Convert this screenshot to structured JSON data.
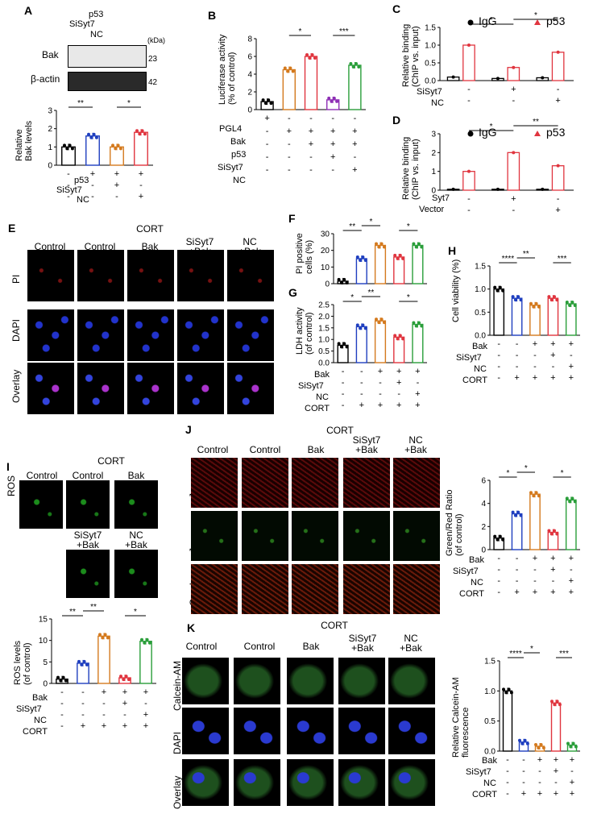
{
  "panels": {
    "A": "A",
    "B": "B",
    "C": "C",
    "D": "D",
    "E": "E",
    "F": "F",
    "G": "G",
    "H": "H",
    "I": "I",
    "J": "J",
    "K": "K"
  },
  "common": {
    "control": "Control",
    "cort": "CORT",
    "bak": "Bak",
    "sisyt7": "SiSyt7",
    "nc": "NC",
    "p53": "p53",
    "plus": "+",
    "minus": "-",
    "sisyt7_bak": [
      "SiSyt7",
      "+Bak"
    ],
    "nc_bak": [
      "NC",
      "+Bak"
    ]
  },
  "A": {
    "blot_labels": [
      "Bak",
      "β-actin"
    ],
    "kda": "(kDa)",
    "markers": [
      "23",
      "42"
    ],
    "ylabel": [
      "Relative",
      "Bak levels"
    ],
    "sig": [
      "**",
      "*"
    ]
  },
  "B": {
    "ylabel": [
      "Luciferase activity",
      "(% of control)"
    ],
    "rows": [
      "PGL4",
      "Bak",
      "p53",
      "SiSyt7",
      "NC"
    ],
    "sig": [
      "*",
      "***"
    ]
  },
  "C": {
    "legend": [
      "IgG",
      "p53"
    ],
    "ylabel": [
      "Relative binding",
      "(ChIP vs. input)"
    ],
    "rows": [
      "SiSyt7",
      "NC"
    ],
    "sig": [
      "*",
      "*"
    ]
  },
  "D": {
    "legend": [
      "IgG",
      "p53"
    ],
    "ylabel": [
      "Relative binding",
      "(ChIP vs. input)"
    ],
    "rows": [
      "Syt7",
      "Vector"
    ],
    "sig": [
      "*",
      "**"
    ]
  },
  "E": {
    "rows": [
      "PI",
      "DAPI",
      "Overlay"
    ]
  },
  "F": {
    "ylabel": [
      "PI positive",
      "cells (%)"
    ],
    "sig": [
      "**",
      "*",
      "*"
    ]
  },
  "G": {
    "ylabel": [
      "LDH activity",
      "(of control)"
    ],
    "sig": [
      "*",
      "**",
      "*"
    ]
  },
  "H": {
    "ylabel": "Cell viability (%)",
    "sig": [
      "****",
      "**",
      "***"
    ]
  },
  "I": {
    "row": "ROS",
    "ylabel": [
      "ROS levels",
      "(of control)"
    ],
    "sig": [
      "**",
      "**",
      "*"
    ]
  },
  "J": {
    "rows": [
      "J-agg",
      "J-mono",
      "Overlay"
    ],
    "ylabel": [
      "Green/Red Ratio",
      "(of control)"
    ],
    "sig": [
      "*",
      "*",
      "*"
    ]
  },
  "K": {
    "rows": [
      "Calcein-AM",
      "DAPI",
      "Overlay"
    ],
    "ylabel": [
      "Relative Calcein-AM",
      "fluorescence"
    ],
    "sig": [
      "****",
      "*",
      "***"
    ]
  },
  "chart_data": [
    {
      "id": "A",
      "type": "bar",
      "categories": [
        "1",
        "2",
        "3",
        "4"
      ],
      "values": [
        1.0,
        1.6,
        1.0,
        1.8
      ],
      "ylim": [
        0,
        3
      ],
      "colors": [
        "#000000",
        "#1f3fbf",
        "#d47a1e",
        "#e0353f"
      ]
    },
    {
      "id": "B",
      "type": "bar",
      "categories": [
        "1",
        "2",
        "3",
        "4",
        "5"
      ],
      "values": [
        0.9,
        4.5,
        6.0,
        1.1,
        5.0
      ],
      "ylim": [
        0,
        8
      ],
      "colors": [
        "#000000",
        "#d47a1e",
        "#e0353f",
        "#8e2fb5",
        "#2a9e3a"
      ]
    },
    {
      "id": "C",
      "type": "bar",
      "series": [
        {
          "name": "IgG",
          "values": [
            0.1,
            0.06,
            0.08
          ]
        },
        {
          "name": "p53",
          "values": [
            1.0,
            0.37,
            0.8
          ]
        }
      ],
      "ylim": [
        0,
        1.5
      ],
      "colors": [
        "#000000",
        "#e0353f"
      ]
    },
    {
      "id": "D",
      "type": "bar",
      "series": [
        {
          "name": "IgG",
          "values": [
            0.05,
            0.05,
            0.05
          ]
        },
        {
          "name": "p53",
          "values": [
            1.0,
            2.0,
            1.3
          ]
        }
      ],
      "ylim": [
        0,
        3
      ],
      "colors": [
        "#000000",
        "#e0353f"
      ]
    },
    {
      "id": "F",
      "type": "bar",
      "categories": [
        "1",
        "2",
        "3",
        "4",
        "5"
      ],
      "values": [
        1.5,
        15,
        23,
        16,
        23
      ],
      "ylim": [
        0,
        30
      ],
      "colors": [
        "#000000",
        "#1f3fbf",
        "#d47a1e",
        "#e0353f",
        "#2a9e3a"
      ]
    },
    {
      "id": "G",
      "type": "bar",
      "categories": [
        "1",
        "2",
        "3",
        "4",
        "5"
      ],
      "values": [
        0.75,
        1.55,
        1.8,
        1.1,
        1.65
      ],
      "ylim": [
        0,
        2.5
      ],
      "colors": [
        "#000000",
        "#1f3fbf",
        "#d47a1e",
        "#e0353f",
        "#2a9e3a"
      ]
    },
    {
      "id": "H",
      "type": "bar",
      "categories": [
        "1",
        "2",
        "3",
        "4",
        "5"
      ],
      "values": [
        1.0,
        0.8,
        0.65,
        0.8,
        0.68
      ],
      "ylim": [
        0,
        1.5
      ],
      "colors": [
        "#000000",
        "#1f3fbf",
        "#d47a1e",
        "#e0353f",
        "#2a9e3a"
      ]
    },
    {
      "id": "I",
      "type": "bar",
      "categories": [
        "1",
        "2",
        "3",
        "4",
        "5"
      ],
      "values": [
        1.0,
        4.7,
        11,
        1.3,
        9.8
      ],
      "ylim": [
        0,
        15
      ],
      "colors": [
        "#000000",
        "#1f3fbf",
        "#d47a1e",
        "#e0353f",
        "#2a9e3a"
      ]
    },
    {
      "id": "J",
      "type": "bar",
      "categories": [
        "1",
        "2",
        "3",
        "4",
        "5"
      ],
      "values": [
        1.0,
        3.1,
        4.8,
        1.5,
        4.3
      ],
      "ylim": [
        0,
        6
      ],
      "colors": [
        "#000000",
        "#1f3fbf",
        "#d47a1e",
        "#e0353f",
        "#2a9e3a"
      ]
    },
    {
      "id": "K",
      "type": "bar",
      "categories": [
        "1",
        "2",
        "3",
        "4",
        "5"
      ],
      "values": [
        1.0,
        0.15,
        0.08,
        0.8,
        0.1
      ],
      "ylim": [
        0,
        1.5
      ],
      "colors": [
        "#000000",
        "#1f3fbf",
        "#d47a1e",
        "#e0353f",
        "#2a9e3a"
      ]
    }
  ]
}
